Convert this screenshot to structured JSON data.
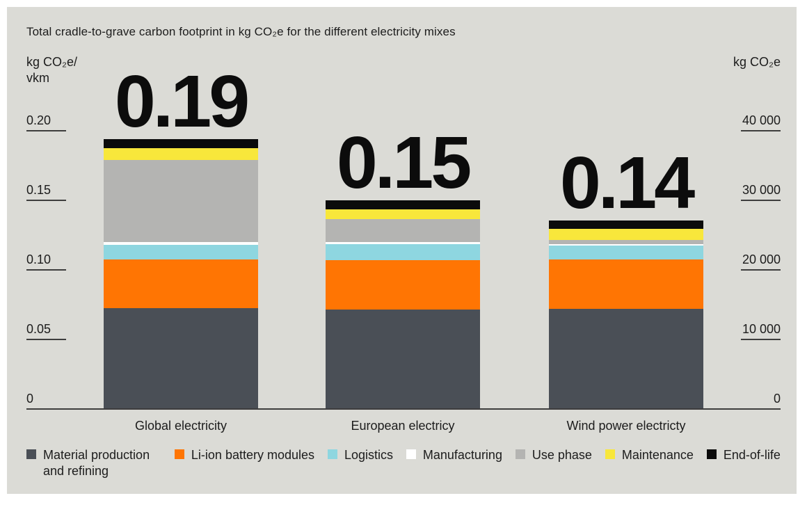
{
  "page": {
    "background_color": "#ffffff",
    "card_background_color": "#dbdbd6",
    "text_color": "#1c1c1c",
    "axis_line_color": "#3d3d3d"
  },
  "chart_data": {
    "type": "bar",
    "variant": "stacked",
    "title": "Total cradle-to-grave carbon footprint in kg CO₂e for the different electricity mixes",
    "grid": false,
    "legend_position": "bottom",
    "left_axis": {
      "unit_line1": "kg CO₂e/",
      "unit_line2": "vkm",
      "range": [
        0,
        0.2
      ],
      "ticks": [
        {
          "label": "0.20",
          "value": 0.2
        },
        {
          "label": "0.15",
          "value": 0.15
        },
        {
          "label": "0.10",
          "value": 0.1
        },
        {
          "label": "0.05",
          "value": 0.05
        },
        {
          "label": "0",
          "value": 0
        }
      ]
    },
    "right_axis": {
      "unit": "kg CO₂e",
      "range": [
        0,
        40000
      ],
      "ticks": [
        {
          "label": "40 000",
          "value": 40000
        },
        {
          "label": "30 000",
          "value": 30000
        },
        {
          "label": "20 000",
          "value": 20000
        },
        {
          "label": "10 000",
          "value": 10000
        },
        {
          "label": "0",
          "value": 0
        }
      ]
    },
    "categories": [
      "Global electricity",
      "European electricy",
      "Wind power electricty"
    ],
    "bar_total_labels": [
      "0.19",
      "0.15",
      "0.14"
    ],
    "series": [
      {
        "name": "Material production and refining",
        "color": "#4a4f56",
        "values": [
          0.072,
          0.071,
          0.0715
        ]
      },
      {
        "name": "Li-ion battery modules",
        "color": "#ff7503",
        "values": [
          0.035,
          0.0355,
          0.0355
        ]
      },
      {
        "name": "Logistics",
        "color": "#8ed6e0",
        "values": [
          0.0105,
          0.0115,
          0.01
        ]
      },
      {
        "name": "Manufacturing",
        "color": "#ffffff",
        "values": [
          0.002,
          0.0015,
          0.001
        ]
      },
      {
        "name": "Use phase",
        "color": "#b4b4b2",
        "values": [
          0.059,
          0.0165,
          0.003
        ]
      },
      {
        "name": "Maintenance",
        "color": "#f8e73b",
        "values": [
          0.0085,
          0.007,
          0.008
        ]
      },
      {
        "name": "End-of-life",
        "color": "#0b0b0b",
        "values": [
          0.0065,
          0.0065,
          0.006
        ]
      }
    ]
  }
}
